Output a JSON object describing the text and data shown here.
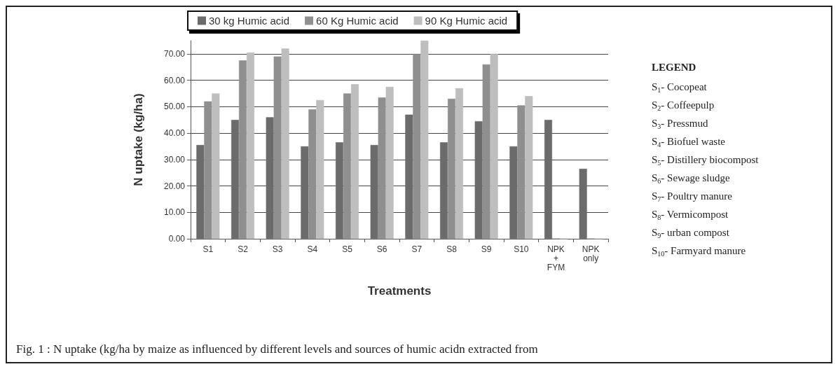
{
  "chart_data": {
    "type": "bar",
    "xlabel": "Treatments",
    "ylabel": "N uptake (kg/ha)",
    "categories": [
      "S1",
      "S2",
      "S3",
      "S4",
      "S5",
      "S6",
      "S7",
      "S8",
      "S9",
      "S10",
      "NPK + FYM",
      "NPK only"
    ],
    "series": [
      {
        "name": "30 kg Humic acid",
        "color": "#6b6b6b",
        "values": [
          35.5,
          45,
          46,
          35,
          36.5,
          35.5,
          47,
          36.5,
          44.5,
          35,
          45,
          26.5
        ]
      },
      {
        "name": "60 Kg Humic acid",
        "color": "#8f8f8f",
        "values": [
          52,
          67.5,
          69,
          49,
          55,
          53.5,
          70,
          53,
          66,
          50.5,
          0,
          0
        ]
      },
      {
        "name": "90 Kg Humic acid",
        "color": "#bebebe",
        "values": [
          55,
          70.5,
          72,
          52.5,
          58.5,
          57.5,
          75,
          57,
          70,
          54,
          0,
          0
        ]
      }
    ],
    "ylim": [
      0,
      75
    ],
    "yticks": [
      {
        "value": 0,
        "label": "0.00"
      },
      {
        "value": 10,
        "label": "10.00"
      },
      {
        "value": 20,
        "label": "20.00"
      },
      {
        "value": 30,
        "label": "30.00"
      },
      {
        "value": 40,
        "label": "40.00"
      },
      {
        "value": 50,
        "label": "50.00"
      },
      {
        "value": 60,
        "label": "60.00"
      },
      {
        "value": 70,
        "label": "70.00"
      }
    ],
    "grid": "y",
    "legend": "top",
    "annotations": [
      "LEGEND",
      "S$_{1}$- Cocopeat",
      "S$_{2}$- Coffeepulp",
      "S$_{3}$- Pressmud",
      "S$_{4}$- Biofuel waste",
      "S$_{5}$- Distillery biocompost",
      "S$_{6}$- Sewage sludge",
      "S$_{7}$- Poultry manure",
      "S$_{8}$- Vermicompost",
      "S$_{9}$- urban compost",
      "S$_{10}$- Farmyard manure",
      "Fig. 1 : N uptake (kg/ha by maize as influenced by different levels and sources of humic acidn extracted from"
    ]
  }
}
